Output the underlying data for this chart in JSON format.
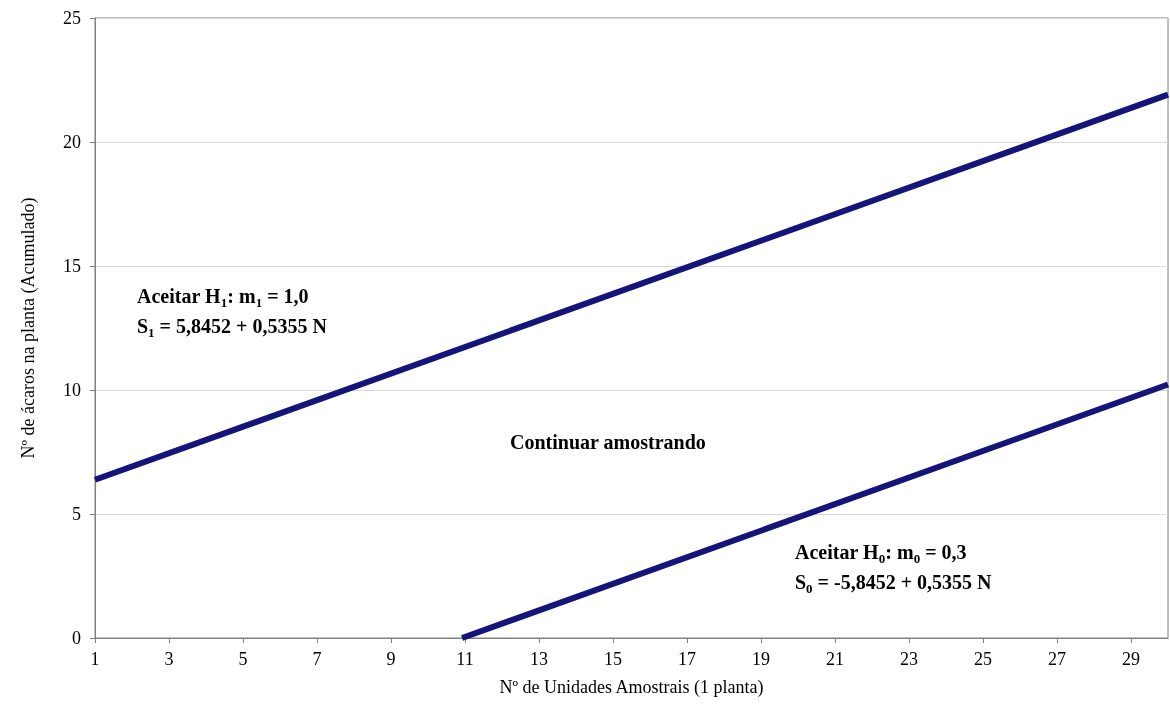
{
  "chart_data": {
    "type": "line",
    "xlabel": "Nº de Unidades Amostrais (1 planta)",
    "ylabel": "Nº de ácaros na planta (Acumulado)",
    "xlim": [
      1,
      30
    ],
    "xticks": [
      1,
      3,
      5,
      7,
      9,
      11,
      13,
      15,
      17,
      19,
      21,
      23,
      25,
      27,
      29
    ],
    "ylim": [
      0,
      25
    ],
    "yticks": [
      0,
      5,
      10,
      15,
      20,
      25
    ],
    "grid": "y",
    "marker": "none",
    "line_style": "solid",
    "series": [
      {
        "color": "#14147a",
        "x": [
          1,
          30
        ],
        "values": [
          6.38,
          21.91
        ]
      },
      {
        "color": "#14147a",
        "x": [
          10.92,
          30
        ],
        "values": [
          0,
          10.22
        ]
      }
    ],
    "annotations": [
      "Aceitar H$_{1}$: m$_{1}$ = 1,0",
      "S$_{1}$ = 5,8452 + 0,5355 N",
      "Continuar amostrando",
      "Aceitar H$_{0}$: m$_{0}$ = 0,3",
      "S$_{0}$ = -5,8452 + 0,5355 N"
    ]
  }
}
